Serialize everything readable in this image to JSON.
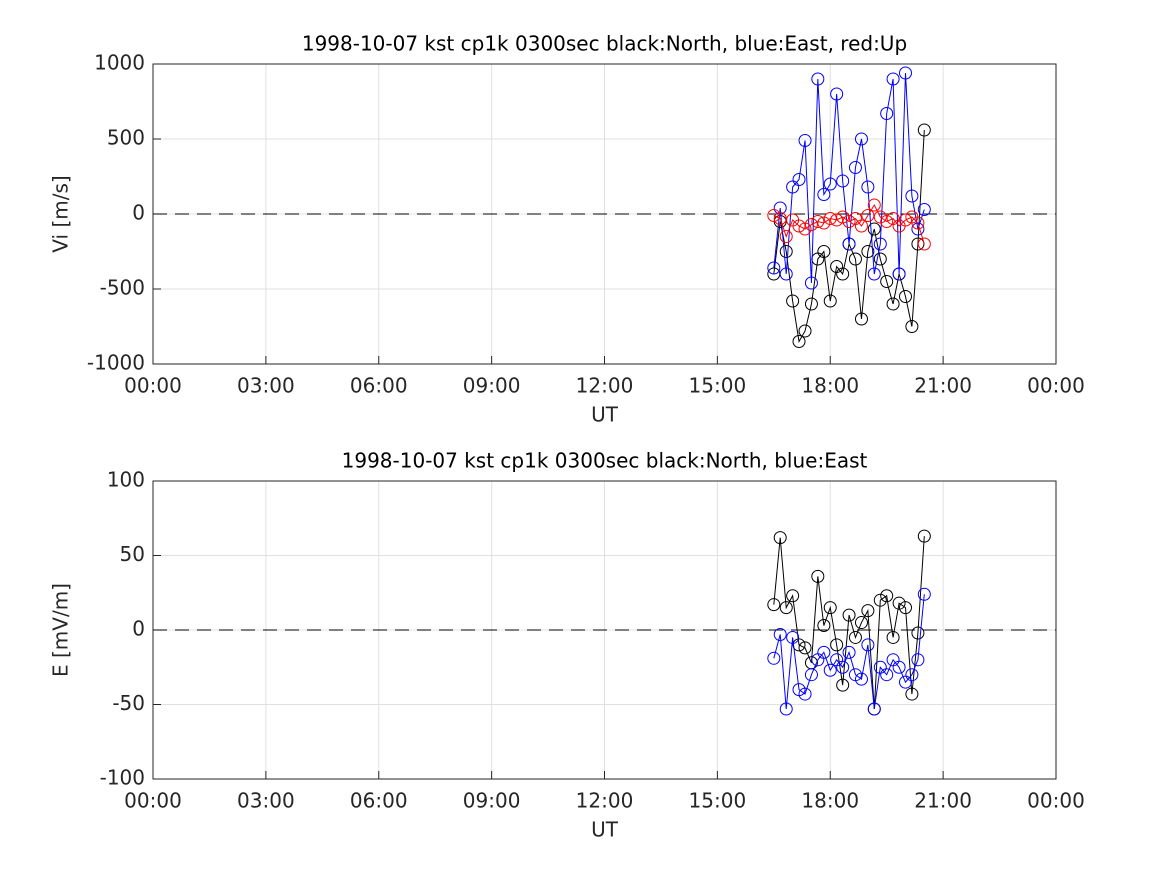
{
  "chart_data": [
    {
      "type": "line",
      "title": "1998-10-07 kst cp1k 0300sec black:North, blue:East, red:Up",
      "xlabel": "UT",
      "ylabel": "Vi [m/s]",
      "xlim": [
        0,
        24
      ],
      "ylim": [
        -1000,
        1000
      ],
      "grid": true,
      "xticks": [
        {
          "value": 0,
          "label": "00:00"
        },
        {
          "value": 3,
          "label": "03:00"
        },
        {
          "value": 6,
          "label": "06:00"
        },
        {
          "value": 9,
          "label": "09:00"
        },
        {
          "value": 12,
          "label": "12:00"
        },
        {
          "value": 15,
          "label": "15:00"
        },
        {
          "value": 18,
          "label": "18:00"
        },
        {
          "value": 21,
          "label": "21:00"
        },
        {
          "value": 24,
          "label": "00:00"
        }
      ],
      "yticks": [
        -1000,
        -500,
        0,
        500,
        1000
      ],
      "x": [
        16.5,
        16.67,
        16.83,
        17.0,
        17.17,
        17.33,
        17.5,
        17.67,
        17.83,
        18.0,
        18.17,
        18.33,
        18.5,
        18.67,
        18.83,
        19.0,
        19.17,
        19.33,
        19.5,
        19.67,
        19.83,
        20.0,
        20.17,
        20.33,
        20.5
      ],
      "series": [
        {
          "color": "#000000",
          "values": [
            -400,
            -50,
            -250,
            -580,
            -850,
            -780,
            -600,
            -300,
            -250,
            -580,
            -350,
            -400,
            -200,
            -300,
            -700,
            -250,
            -100,
            -300,
            -450,
            -600,
            -400,
            -550,
            -750,
            -200,
            560
          ]
        },
        {
          "color": "#0000ff",
          "values": [
            -360,
            40,
            -400,
            180,
            230,
            490,
            -460,
            900,
            130,
            200,
            800,
            220,
            -200,
            310,
            500,
            180,
            -400,
            -200,
            670,
            900,
            -400,
            940,
            120,
            -100,
            30
          ]
        },
        {
          "color": "#ff0000",
          "values": [
            -10,
            -30,
            -150,
            -40,
            -80,
            -100,
            -70,
            -50,
            -60,
            -30,
            -40,
            -20,
            -50,
            -30,
            -80,
            -10,
            60,
            -20,
            -50,
            -30,
            -80,
            -40,
            -20,
            -60,
            -200
          ]
        }
      ]
    },
    {
      "type": "line",
      "title": "1998-10-07 kst cp1k 0300sec black:North, blue:East",
      "xlabel": "UT",
      "ylabel": "E [mV/m]",
      "xlim": [
        0,
        24
      ],
      "ylim": [
        -100,
        100
      ],
      "grid": true,
      "xticks": [
        {
          "value": 0,
          "label": "00:00"
        },
        {
          "value": 3,
          "label": "03:00"
        },
        {
          "value": 6,
          "label": "06:00"
        },
        {
          "value": 9,
          "label": "09:00"
        },
        {
          "value": 12,
          "label": "12:00"
        },
        {
          "value": 15,
          "label": "15:00"
        },
        {
          "value": 18,
          "label": "18:00"
        },
        {
          "value": 21,
          "label": "21:00"
        },
        {
          "value": 24,
          "label": "00:00"
        }
      ],
      "yticks": [
        -100,
        -50,
        0,
        50,
        100
      ],
      "x": [
        16.5,
        16.67,
        16.83,
        17.0,
        17.17,
        17.33,
        17.5,
        17.67,
        17.83,
        18.0,
        18.17,
        18.33,
        18.5,
        18.67,
        18.83,
        19.0,
        19.17,
        19.33,
        19.5,
        19.67,
        19.83,
        20.0,
        20.17,
        20.33,
        20.5
      ],
      "series": [
        {
          "color": "#000000",
          "values": [
            17,
            62,
            15,
            23,
            -10,
            -12,
            -22,
            36,
            3,
            15,
            -10,
            -37,
            10,
            -5,
            5,
            13,
            -53,
            20,
            23,
            -5,
            18,
            15,
            -43,
            -2,
            63
          ]
        },
        {
          "color": "#0000ff",
          "values": [
            -19,
            -3,
            -53,
            -5,
            -40,
            -43,
            -30,
            -20,
            -15,
            -27,
            -20,
            -25,
            -15,
            -30,
            -33,
            -10,
            -53,
            -25,
            -30,
            -20,
            -25,
            -35,
            -30,
            -20,
            24
          ]
        }
      ]
    }
  ]
}
